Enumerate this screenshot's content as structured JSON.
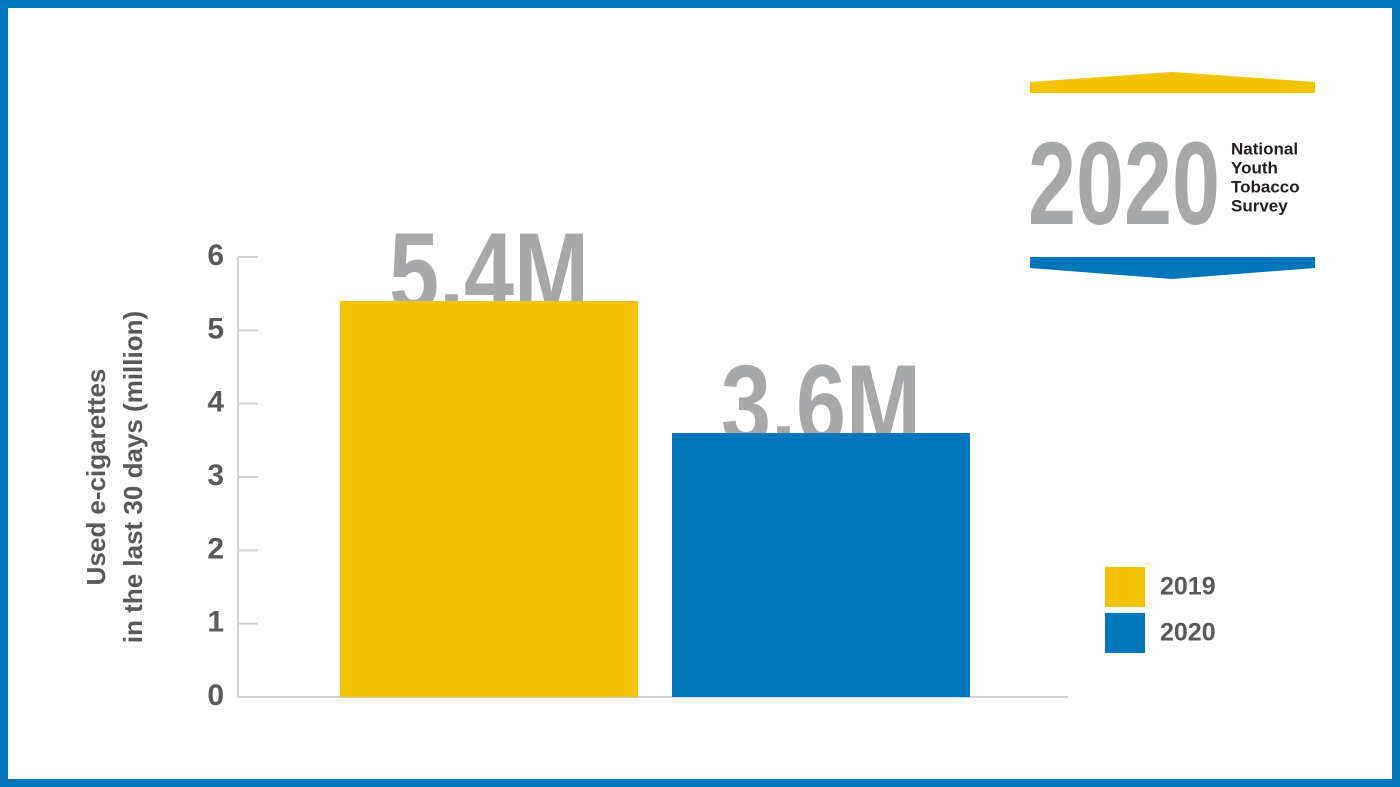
{
  "chart_data": {
    "type": "bar",
    "y_label": [
      "Used e-cigarettes",
      "in the last 30 days (million)"
    ],
    "categories": [
      null
    ],
    "series": [
      {
        "name": "2019",
        "color": "#f3c300",
        "values": [
          5.4
        ],
        "value_labels": [
          "5.4M"
        ]
      },
      {
        "name": "2020",
        "color": "#0077bb",
        "values": [
          3.6
        ],
        "value_labels": [
          "3.6M"
        ]
      }
    ],
    "ylim": [
      0,
      6
    ],
    "yticks": [
      0,
      1,
      2,
      3,
      4,
      5,
      6
    ],
    "grid": false,
    "legend": "right"
  },
  "logo": {
    "year": "2020",
    "lines": [
      "National",
      "Youth",
      "Tobacco",
      "Survey"
    ]
  }
}
